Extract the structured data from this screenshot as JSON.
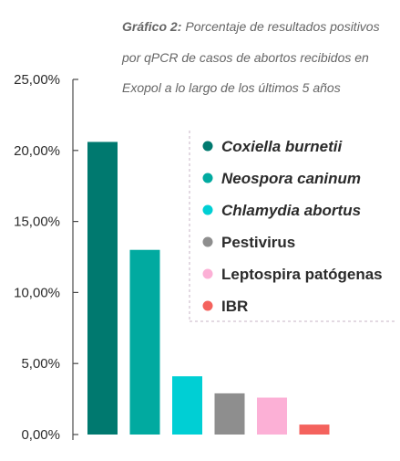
{
  "title": {
    "prefix": "Gráfico 2:",
    "line1_rest": "Porcentaje de resultados positivos",
    "line2": "por qPCR de casos de abortos recibidos en",
    "line3": "Exopol a lo largo de los últimos 5 años"
  },
  "chart_data": {
    "type": "bar",
    "title": "Gráfico 2: Porcentaje de resultados positivos por qPCR de casos de abortos recibidos en Exopol a lo largo de los últimos 5 años",
    "xlabel": "",
    "ylabel": "",
    "ylim": [
      0,
      25
    ],
    "yticks": [
      "0,00%",
      "5,00%",
      "10,00%",
      "15,00%",
      "20,00%",
      "25,00%"
    ],
    "grid": false,
    "legend_position": "right",
    "series": [
      {
        "name": "Coxiella burnetii",
        "value": 20.6,
        "color": "#00796f",
        "italic": true
      },
      {
        "name": "Neospora caninum",
        "value": 13.0,
        "color": "#01aaa0",
        "italic": true
      },
      {
        "name": "Chlamydia abortus",
        "value": 4.1,
        "color": "#00cfd4",
        "italic": true
      },
      {
        "name": "Pestivirus",
        "value": 2.9,
        "color": "#8e8e8e",
        "italic": false
      },
      {
        "name": "Leptospira patógenas",
        "value": 2.6,
        "color": "#fcb0d6",
        "italic": false
      },
      {
        "name": "IBR",
        "value": 0.7,
        "color": "#f4625d",
        "italic": false
      }
    ]
  }
}
